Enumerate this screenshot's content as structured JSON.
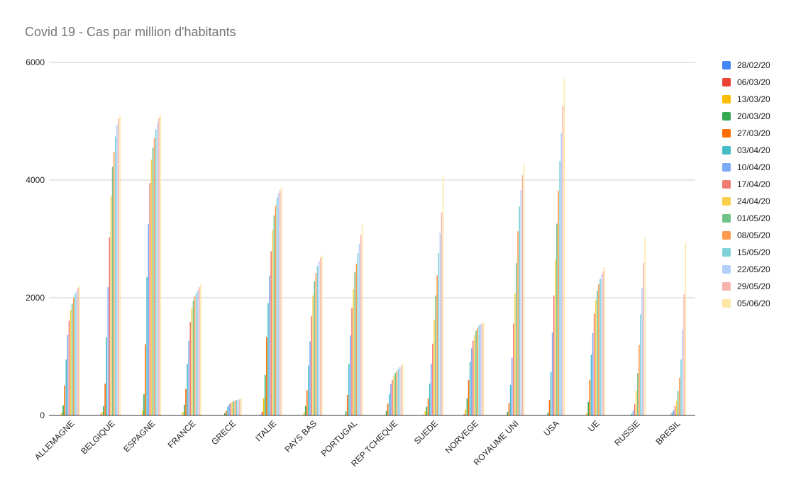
{
  "chart_data": {
    "type": "bar",
    "title": "Covid 19 - Cas par million d'habitants",
    "xlabel": "",
    "ylabel": "",
    "ylim": [
      0,
      6000
    ],
    "yticks": [
      "0",
      "2000",
      "4000",
      "6000"
    ],
    "grid": true,
    "legend_position": "right",
    "categories": [
      "ALLEMAGNE",
      "BELGIQUE",
      "ESPAGNE",
      "FRANCE",
      "GRECE",
      "ITALIE",
      "PAYS BAS",
      "PORTUGAL",
      "REP TCHEQUE",
      "SUEDE",
      "NORVEGE",
      "ROYAUME UNI",
      "USA",
      "UE",
      "RUSSIE",
      "BRESIL"
    ],
    "series": [
      {
        "name": "28/02/20",
        "color": "#4285f4",
        "values": [
          1,
          0,
          1,
          1,
          0,
          14,
          0,
          0,
          0,
          1,
          2,
          0,
          0,
          1,
          0,
          0
        ]
      },
      {
        "name": "06/03/20",
        "color": "#ea4335",
        "values": [
          8,
          15,
          9,
          6,
          3,
          63,
          5,
          1,
          2,
          13,
          20,
          2,
          1,
          7,
          0,
          0
        ]
      },
      {
        "name": "13/03/20",
        "color": "#fbbc04",
        "values": [
          45,
          60,
          80,
          58,
          10,
          290,
          50,
          10,
          12,
          70,
          100,
          12,
          5,
          40,
          0,
          1
        ]
      },
      {
        "name": "20/03/20",
        "color": "#34a853",
        "values": [
          170,
          160,
          360,
          180,
          40,
          690,
          160,
          70,
          80,
          150,
          290,
          60,
          50,
          230,
          1,
          3
        ]
      },
      {
        "name": "27/03/20",
        "color": "#ff6d01",
        "values": [
          510,
          540,
          1210,
          450,
          80,
          1330,
          430,
          350,
          200,
          290,
          600,
          210,
          260,
          600,
          8,
          15
        ]
      },
      {
        "name": "03/04/20",
        "color": "#46bdc6",
        "values": [
          950,
          1330,
          2350,
          880,
          150,
          1910,
          850,
          880,
          360,
          540,
          910,
          520,
          740,
          1030,
          30,
          50
        ]
      },
      {
        "name": "10/04/20",
        "color": "#7baaf7",
        "values": [
          1370,
          2180,
          3250,
          1270,
          190,
          2380,
          1260,
          1360,
          530,
          880,
          1140,
          980,
          1410,
          1400,
          80,
          90
        ]
      },
      {
        "name": "17/04/20",
        "color": "#f07b72",
        "values": [
          1610,
          3030,
          3950,
          1590,
          210,
          2790,
          1690,
          1830,
          600,
          1220,
          1270,
          1560,
          2040,
          1730,
          190,
          160
        ]
      },
      {
        "name": "24/04/20",
        "color": "#fcd04f",
        "values": [
          1790,
          3720,
          4350,
          1830,
          230,
          3150,
          2040,
          2150,
          670,
          1630,
          1370,
          2070,
          2650,
          1960,
          420,
          250
        ]
      },
      {
        "name": "01/05/20",
        "color": "#71c287",
        "values": [
          1900,
          4230,
          4550,
          1950,
          245,
          3400,
          2280,
          2430,
          720,
          2040,
          1440,
          2590,
          3260,
          2120,
          720,
          420
        ]
      },
      {
        "name": "08/05/20",
        "color": "#ff994d",
        "values": [
          2000,
          4480,
          4710,
          2020,
          255,
          3570,
          2420,
          2580,
          760,
          2380,
          1490,
          3130,
          3820,
          2230,
          1200,
          640
        ]
      },
      {
        "name": "15/05/20",
        "color": "#7ed1d7",
        "values": [
          2070,
          4740,
          4860,
          2080,
          262,
          3700,
          2540,
          2760,
          790,
          2760,
          1530,
          3550,
          4320,
          2320,
          1720,
          950
        ]
      },
      {
        "name": "22/05/20",
        "color": "#b3cefb",
        "values": [
          2120,
          4940,
          4970,
          2130,
          268,
          3780,
          2620,
          2920,
          820,
          3100,
          1550,
          3830,
          4800,
          2390,
          2170,
          1460
        ]
      },
      {
        "name": "29/05/20",
        "color": "#f7b4ae",
        "values": [
          2170,
          5040,
          5050,
          2180,
          275,
          3830,
          2680,
          3070,
          840,
          3450,
          1560,
          4080,
          5260,
          2450,
          2590,
          2060
        ]
      },
      {
        "name": "05/06/20",
        "color": "#fde7a6",
        "values": [
          2200,
          5110,
          5110,
          2230,
          285,
          3880,
          2720,
          3250,
          880,
          4070,
          1580,
          4270,
          5720,
          2520,
          3020,
          2930
        ]
      }
    ]
  }
}
